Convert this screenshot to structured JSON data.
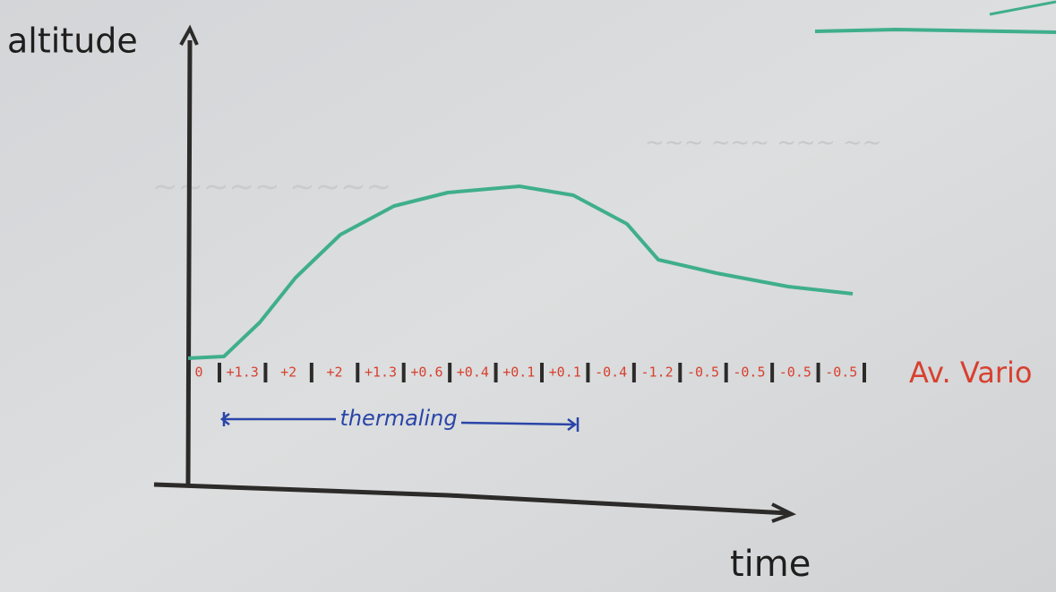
{
  "axes": {
    "y_label": "altitude",
    "x_label": "time"
  },
  "vario": {
    "start": "0",
    "values": [
      "+1.3",
      "+2",
      "+2",
      "+1.3",
      "+0.6",
      "+0.4",
      "+0.1",
      "+0.1",
      "-0.4",
      "-1.2",
      "-0.5",
      "-0.5",
      "-0.5",
      "-0.5"
    ],
    "label": "Av. Vario"
  },
  "annotation": "thermaling"
}
